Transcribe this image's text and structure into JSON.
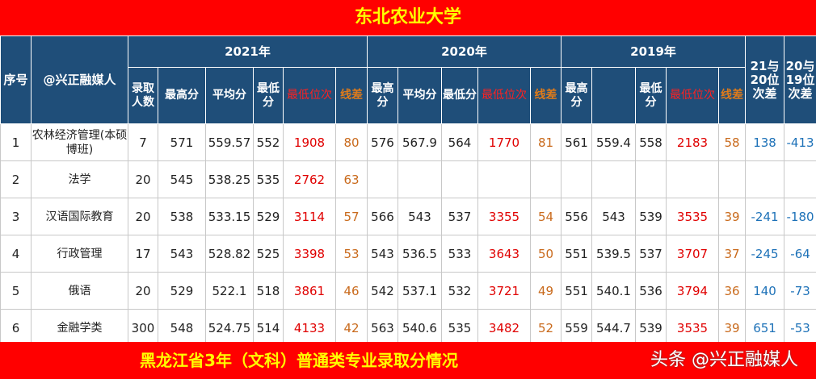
{
  "title": "东北农业大学",
  "footer": "黑龙江省3年（文科）普通类专业录取分情况",
  "watermark": "头条 @兴正融媒人",
  "header": {
    "seq": "序号",
    "author": "@兴正融媒人",
    "years": [
      "2021年",
      "2020年",
      "2019年"
    ],
    "diff_21_20": "21与20位次差",
    "diff_20_19": "20与19位次差",
    "cols_2021": [
      "录取人数",
      "最高分",
      "平均分",
      "最低分",
      "最低位次",
      "线差"
    ],
    "cols_2020": [
      "最高分",
      "平均分",
      "最低分",
      "最低位次",
      "线差"
    ],
    "cols_2019": [
      "最高分",
      "",
      "最低分",
      "最低位次",
      "线差"
    ]
  },
  "colors": {
    "banner_bg": "#ff0000",
    "banner_text": "#ffff00",
    "header_bg": "#1f4e79",
    "rank": "#e00000",
    "line_diff": "#c96a1c",
    "rank_diff": "#1e72b8"
  },
  "rows": [
    {
      "seq": "1",
      "major": "农林经济管理(本硕博班)",
      "y21": [
        "7",
        "571",
        "559.57",
        "552",
        "1908",
        "80"
      ],
      "y20": [
        "576",
        "567.9",
        "564",
        "1770",
        "81"
      ],
      "y19": [
        "561",
        "559.4",
        "558",
        "2183",
        "58"
      ],
      "d1": "138",
      "d2": "-413"
    },
    {
      "seq": "2",
      "major": "法学",
      "y21": [
        "20",
        "545",
        "538.25",
        "535",
        "2762",
        "63"
      ],
      "y20": [
        "",
        "",
        "",
        "",
        ""
      ],
      "y19": [
        "",
        "",
        "",
        "",
        ""
      ],
      "d1": "",
      "d2": ""
    },
    {
      "seq": "3",
      "major": "汉语国际教育",
      "y21": [
        "20",
        "538",
        "533.15",
        "529",
        "3114",
        "57"
      ],
      "y20": [
        "566",
        "543",
        "537",
        "3355",
        "54"
      ],
      "y19": [
        "556",
        "543",
        "539",
        "3535",
        "39"
      ],
      "d1": "-241",
      "d2": "-180"
    },
    {
      "seq": "4",
      "major": "行政管理",
      "y21": [
        "17",
        "543",
        "528.82",
        "525",
        "3398",
        "53"
      ],
      "y20": [
        "543",
        "536.5",
        "533",
        "3643",
        "50"
      ],
      "y19": [
        "551",
        "539.5",
        "537",
        "3707",
        "37"
      ],
      "d1": "-245",
      "d2": "-64"
    },
    {
      "seq": "5",
      "major": "俄语",
      "y21": [
        "20",
        "529",
        "522.1",
        "518",
        "3861",
        "46"
      ],
      "y20": [
        "542",
        "537.1",
        "532",
        "3721",
        "49"
      ],
      "y19": [
        "551",
        "540.1",
        "536",
        "3794",
        "36"
      ],
      "d1": "140",
      "d2": "-73"
    },
    {
      "seq": "6",
      "major": "金融学类",
      "y21": [
        "300",
        "548",
        "524.75",
        "514",
        "4133",
        "42"
      ],
      "y20": [
        "563",
        "540.6",
        "535",
        "3482",
        "52"
      ],
      "y19": [
        "559",
        "544.7",
        "539",
        "3535",
        "39"
      ],
      "d1": "651",
      "d2": "-53"
    }
  ]
}
